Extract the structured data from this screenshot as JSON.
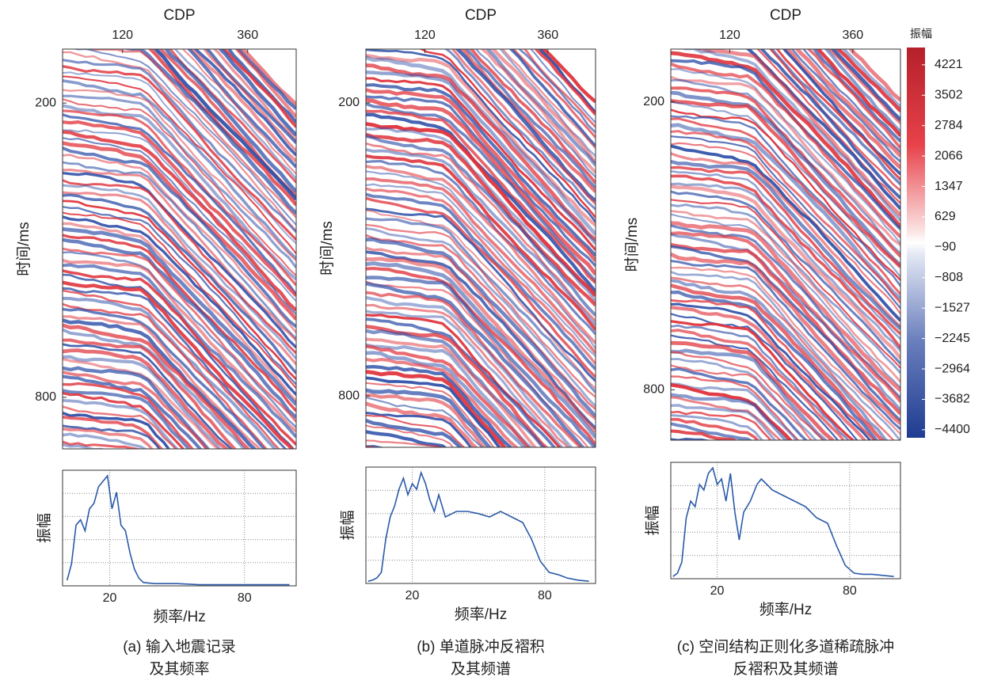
{
  "chart_data": [
    {
      "type": "heatmap",
      "x_label": "CDP",
      "y_label": "时间/ms",
      "xlim": [
        5,
        453
      ],
      "xticks": [
        120,
        360
      ],
      "ylim": [
        90,
        905
      ],
      "y_reversed": true,
      "yticks": [
        200,
        800
      ]
    },
    {
      "type": "heatmap",
      "x_label": "CDP",
      "y_label": "时间/ms",
      "xlim": [
        5,
        453
      ],
      "xticks": [
        120,
        360
      ],
      "ylim": [
        90,
        905
      ],
      "y_reversed": true,
      "yticks": [
        200,
        800
      ]
    },
    {
      "type": "heatmap",
      "x_label": "CDP",
      "y_label": "时间/ms",
      "xlim": [
        5,
        453
      ],
      "xticks": [
        120,
        360
      ],
      "ylim": [
        90,
        905
      ],
      "y_reversed": true,
      "yticks": [
        200,
        800
      ],
      "colorbar": {
        "label": "振幅",
        "zlim": [
          -4590,
          4630
        ],
        "ticks": [
          4221,
          3502,
          2784,
          2066,
          1347,
          629,
          {
            "value": -90,
            "label": "−90"
          },
          {
            "value": -808,
            "label": "−808"
          },
          {
            "value": -1527,
            "label": "−1527"
          },
          {
            "value": -2245,
            "label": "−2245"
          },
          {
            "value": -2964,
            "label": "−2964"
          },
          {
            "value": -3682,
            "label": "−3682"
          },
          {
            "value": -4400,
            "label": "−4400"
          }
        ]
      }
    },
    {
      "type": "line",
      "x_label": "频率/Hz",
      "y_label": "振幅",
      "xlim": [
        -1,
        103
      ],
      "xticks": [
        20,
        80
      ],
      "ylim": [
        0,
        1.05
      ],
      "grid": true,
      "color": "#2a5aa8",
      "x": [
        1,
        3,
        5,
        7,
        9,
        11,
        13,
        15,
        17,
        19,
        21,
        23,
        25,
        27,
        29,
        31,
        33,
        35,
        40,
        50,
        60,
        70,
        80,
        90,
        100
      ],
      "values": [
        0.05,
        0.2,
        0.55,
        0.6,
        0.5,
        0.7,
        0.75,
        0.9,
        0.95,
        1.0,
        0.7,
        0.85,
        0.55,
        0.5,
        0.3,
        0.15,
        0.07,
        0.03,
        0.02,
        0.02,
        0.01,
        0.01,
        0.01,
        0.01,
        0.01
      ],
      "caption": [
        "(a) 输入地震记录",
        "及其频率"
      ]
    },
    {
      "type": "line",
      "x_label": "频率/Hz",
      "y_label": "振幅",
      "xlim": [
        -1,
        103
      ],
      "xticks": [
        20,
        80
      ],
      "ylim": [
        0,
        1.05
      ],
      "grid": true,
      "color": "#2a5aa8",
      "x": [
        0,
        2,
        4,
        6,
        8,
        10,
        12,
        14,
        16,
        18,
        20,
        22,
        24,
        26,
        28,
        30,
        32,
        35,
        40,
        45,
        50,
        55,
        60,
        65,
        70,
        74,
        78,
        82,
        86,
        90,
        95,
        100
      ],
      "values": [
        0.02,
        0.03,
        0.05,
        0.1,
        0.4,
        0.6,
        0.7,
        0.85,
        0.95,
        0.8,
        0.9,
        0.85,
        1.0,
        0.9,
        0.75,
        0.65,
        0.8,
        0.6,
        0.65,
        0.65,
        0.63,
        0.6,
        0.65,
        0.6,
        0.55,
        0.4,
        0.2,
        0.1,
        0.08,
        0.05,
        0.03,
        0.02
      ],
      "caption": [
        "(b) 单道脉冲反褶积",
        "及其频谱"
      ]
    },
    {
      "type": "line",
      "x_label": "频率/Hz",
      "y_label": "振幅",
      "xlim": [
        -1,
        103
      ],
      "xticks": [
        20,
        80
      ],
      "ylim": [
        0,
        1.05
      ],
      "grid": true,
      "color": "#2a5aa8",
      "x": [
        0,
        2,
        4,
        6,
        8,
        10,
        12,
        14,
        16,
        18,
        20,
        22,
        24,
        26,
        28,
        30,
        32,
        35,
        38,
        40,
        45,
        50,
        55,
        60,
        65,
        70,
        74,
        78,
        82,
        86,
        90,
        95,
        100
      ],
      "values": [
        0.02,
        0.05,
        0.15,
        0.55,
        0.7,
        0.65,
        0.85,
        0.8,
        0.95,
        1.0,
        0.85,
        0.9,
        0.7,
        0.95,
        0.6,
        0.35,
        0.6,
        0.7,
        0.85,
        0.9,
        0.8,
        0.75,
        0.7,
        0.65,
        0.55,
        0.5,
        0.3,
        0.12,
        0.05,
        0.04,
        0.04,
        0.03,
        0.02
      ],
      "caption": [
        "(c) 空间结构正则化多道稀疏脉冲",
        "反褶积及其频谱"
      ]
    }
  ]
}
